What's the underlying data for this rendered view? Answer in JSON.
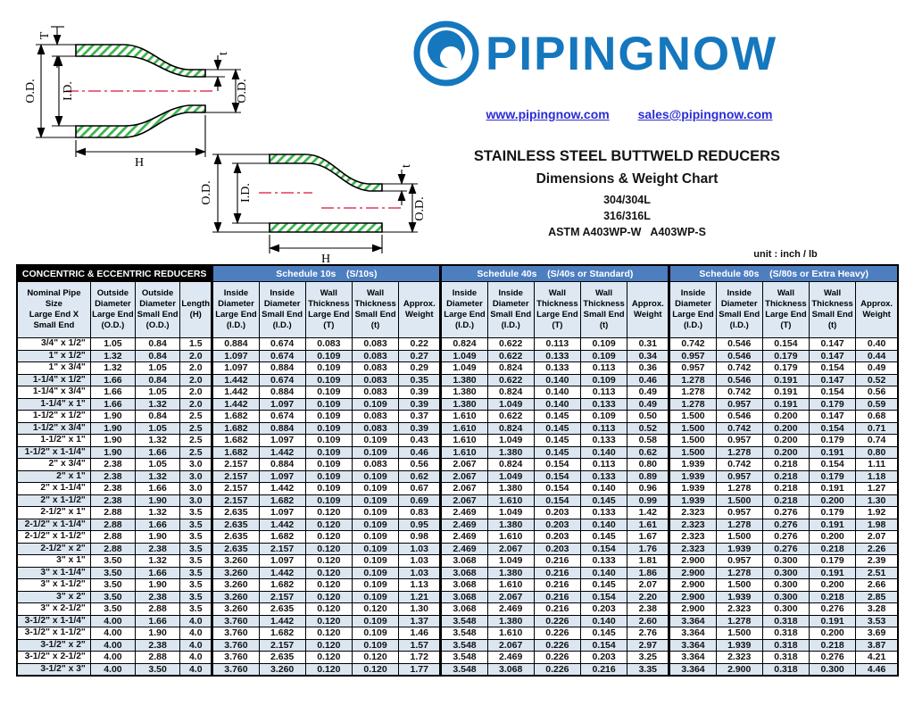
{
  "header": {
    "logo_text": "PIPINGNOW",
    "links": {
      "website": "www.pipingnow.com",
      "email": "sales@pipingnow.com"
    },
    "title_line1": "STAINLESS STEEL BUTTWELD REDUCERS",
    "title_line2": "Dimensions & Weight Chart",
    "grade1": "304/304L",
    "grade2": "316/316L",
    "astm": "ASTM A403WP-W   A403WP-S"
  },
  "unit_note": "unit : inch / lb",
  "diagrams": {
    "labels": {
      "T": "T",
      "t": "t",
      "od": "O.D.",
      "id": "I.D.",
      "h": "H"
    }
  },
  "colors": {
    "brand_blue": "#1577be",
    "link_blue": "#2b2bd5",
    "schedule_header_blue": "#4d7ebf",
    "band_row_blue": "#dce6f1",
    "column_header_blue": "#dde8f3",
    "group_header_black": "#000000",
    "centerline_red": "#e23a5a",
    "hatch_green": "#3db54e"
  },
  "table": {
    "group_headers": [
      {
        "label": "CONCENTRIC & ECCENTRIC REDUCERS"
      },
      {
        "label": "Schedule 10s    (S/10s)"
      },
      {
        "label": "Schedule 40s    (S/40s or Standard)"
      },
      {
        "label": "Schedule 80s    (S/80s or Extra Heavy)"
      }
    ],
    "column_headers": [
      "Nominal Pipe\nSize\nLarge End X\nSmall End",
      "Outside\nDiameter\nLarge End\n(O.D.)",
      "Outside\nDiameter\nSmall End\n(O.D.)",
      "Length\n(H)",
      "Inside\nDiameter\nLarge End\n(I.D.)",
      "Inside\nDiameter\nSmall End\n(I.D.)",
      "Wall\nThickness\nLarge End\n(T)",
      "Wall\nThickness\nSmall End\n(t)",
      "Approx.\nWeight",
      "Inside\nDiameter\nLarge End\n(I.D.)",
      "Inside\nDiameter\nSmall End\n(I.D.)",
      "Wall\nThickness\nLarge End\n(T)",
      "Wall\nThickness\nSmall End\n(t)",
      "Approx.\nWeight",
      "Inside\nDiameter\nLarge End\n(I.D.)",
      "Inside\nDiameter\nSmall End\n(I.D.)",
      "Wall\nThickness\nLarge End\n(T)",
      "Wall\nThickness\nSmall End\n(t)",
      "Approx.\nWeight"
    ],
    "rows": [
      [
        "3/4\" x 1/2\"",
        "1.05",
        "0.84",
        "1.5",
        "0.884",
        "0.674",
        "0.083",
        "0.083",
        "0.22",
        "0.824",
        "0.622",
        "0.113",
        "0.109",
        "0.31",
        "0.742",
        "0.546",
        "0.154",
        "0.147",
        "0.40"
      ],
      [
        "1\" x 1/2\"",
        "1.32",
        "0.84",
        "2.0",
        "1.097",
        "0.674",
        "0.109",
        "0.083",
        "0.27",
        "1.049",
        "0.622",
        "0.133",
        "0.109",
        "0.34",
        "0.957",
        "0.546",
        "0.179",
        "0.147",
        "0.44"
      ],
      [
        "1\" x 3/4\"",
        "1.32",
        "1.05",
        "2.0",
        "1.097",
        "0.884",
        "0.109",
        "0.083",
        "0.29",
        "1.049",
        "0.824",
        "0.133",
        "0.113",
        "0.36",
        "0.957",
        "0.742",
        "0.179",
        "0.154",
        "0.49"
      ],
      [
        "1-1/4\" x 1/2\"",
        "1.66",
        "0.84",
        "2.0",
        "1.442",
        "0.674",
        "0.109",
        "0.083",
        "0.35",
        "1.380",
        "0.622",
        "0.140",
        "0.109",
        "0.46",
        "1.278",
        "0.546",
        "0.191",
        "0.147",
        "0.52"
      ],
      [
        "1-1/4\" x 3/4\"",
        "1.66",
        "1.05",
        "2.0",
        "1.442",
        "0.884",
        "0.109",
        "0.083",
        "0.39",
        "1.380",
        "0.824",
        "0.140",
        "0.113",
        "0.49",
        "1.278",
        "0.742",
        "0.191",
        "0.154",
        "0.56"
      ],
      [
        "1-1/4\" x 1\"",
        "1.66",
        "1.32",
        "2.0",
        "1.442",
        "1.097",
        "0.109",
        "0.109",
        "0.39",
        "1.380",
        "1.049",
        "0.140",
        "0.133",
        "0.49",
        "1.278",
        "0.957",
        "0.191",
        "0.179",
        "0.59"
      ],
      [
        "1-1/2\" x 1/2\"",
        "1.90",
        "0.84",
        "2.5",
        "1.682",
        "0.674",
        "0.109",
        "0.083",
        "0.37",
        "1.610",
        "0.622",
        "0.145",
        "0.109",
        "0.50",
        "1.500",
        "0.546",
        "0.200",
        "0.147",
        "0.68"
      ],
      [
        "1-1/2\" x 3/4\"",
        "1.90",
        "1.05",
        "2.5",
        "1.682",
        "0.884",
        "0.109",
        "0.083",
        "0.39",
        "1.610",
        "0.824",
        "0.145",
        "0.113",
        "0.52",
        "1.500",
        "0.742",
        "0.200",
        "0.154",
        "0.71"
      ],
      [
        "1-1/2\" x 1\"",
        "1.90",
        "1.32",
        "2.5",
        "1.682",
        "1.097",
        "0.109",
        "0.109",
        "0.43",
        "1.610",
        "1.049",
        "0.145",
        "0.133",
        "0.58",
        "1.500",
        "0.957",
        "0.200",
        "0.179",
        "0.74"
      ],
      [
        "1-1/2\" x 1-1/4\"",
        "1.90",
        "1.66",
        "2.5",
        "1.682",
        "1.442",
        "0.109",
        "0.109",
        "0.46",
        "1.610",
        "1.380",
        "0.145",
        "0.140",
        "0.62",
        "1.500",
        "1.278",
        "0.200",
        "0.191",
        "0.80"
      ],
      [
        "2\" x 3/4\"",
        "2.38",
        "1.05",
        "3.0",
        "2.157",
        "0.884",
        "0.109",
        "0.083",
        "0.56",
        "2.067",
        "0.824",
        "0.154",
        "0.113",
        "0.80",
        "1.939",
        "0.742",
        "0.218",
        "0.154",
        "1.11"
      ],
      [
        "2\" x 1\"",
        "2.38",
        "1.32",
        "3.0",
        "2.157",
        "1.097",
        "0.109",
        "0.109",
        "0.62",
        "2.067",
        "1.049",
        "0.154",
        "0.133",
        "0.89",
        "1.939",
        "0.957",
        "0.218",
        "0.179",
        "1.18"
      ],
      [
        "2\" x 1-1/4\"",
        "2.38",
        "1.66",
        "3.0",
        "2.157",
        "1.442",
        "0.109",
        "0.109",
        "0.67",
        "2.067",
        "1.380",
        "0.154",
        "0.140",
        "0.96",
        "1.939",
        "1.278",
        "0.218",
        "0.191",
        "1.27"
      ],
      [
        "2\" x 1-1/2\"",
        "2.38",
        "1.90",
        "3.0",
        "2.157",
        "1.682",
        "0.109",
        "0.109",
        "0.69",
        "2.067",
        "1.610",
        "0.154",
        "0.145",
        "0.99",
        "1.939",
        "1.500",
        "0.218",
        "0.200",
        "1.30"
      ],
      [
        "2-1/2\" x 1\"",
        "2.88",
        "1.32",
        "3.5",
        "2.635",
        "1.097",
        "0.120",
        "0.109",
        "0.83",
        "2.469",
        "1.049",
        "0.203",
        "0.133",
        "1.42",
        "2.323",
        "0.957",
        "0.276",
        "0.179",
        "1.92"
      ],
      [
        "2-1/2\" x 1-1/4\"",
        "2.88",
        "1.66",
        "3.5",
        "2.635",
        "1.442",
        "0.120",
        "0.109",
        "0.95",
        "2.469",
        "1.380",
        "0.203",
        "0.140",
        "1.61",
        "2.323",
        "1.278",
        "0.276",
        "0.191",
        "1.98"
      ],
      [
        "2-1/2\" x 1-1/2\"",
        "2.88",
        "1.90",
        "3.5",
        "2.635",
        "1.682",
        "0.120",
        "0.109",
        "0.98",
        "2.469",
        "1.610",
        "0.203",
        "0.145",
        "1.67",
        "2.323",
        "1.500",
        "0.276",
        "0.200",
        "2.07"
      ],
      [
        "2-1/2\" x 2\"",
        "2.88",
        "2.38",
        "3.5",
        "2.635",
        "2.157",
        "0.120",
        "0.109",
        "1.03",
        "2.469",
        "2.067",
        "0.203",
        "0.154",
        "1.76",
        "2.323",
        "1.939",
        "0.276",
        "0.218",
        "2.26"
      ],
      [
        "3\" x 1\"",
        "3.50",
        "1.32",
        "3.5",
        "3.260",
        "1.097",
        "0.120",
        "0.109",
        "1.03",
        "3.068",
        "1.049",
        "0.216",
        "0.133",
        "1.81",
        "2.900",
        "0.957",
        "0.300",
        "0.179",
        "2.39"
      ],
      [
        "3\" x 1-1/4\"",
        "3.50",
        "1.66",
        "3.5",
        "3.260",
        "1.442",
        "0.120",
        "0.109",
        "1.03",
        "3.068",
        "1.380",
        "0.216",
        "0.140",
        "1.86",
        "2.900",
        "1.278",
        "0.300",
        "0.191",
        "2.51"
      ],
      [
        "3\" x 1-1/2\"",
        "3.50",
        "1.90",
        "3.5",
        "3.260",
        "1.682",
        "0.120",
        "0.109",
        "1.13",
        "3.068",
        "1.610",
        "0.216",
        "0.145",
        "2.07",
        "2.900",
        "1.500",
        "0.300",
        "0.200",
        "2.66"
      ],
      [
        "3\" x 2\"",
        "3.50",
        "2.38",
        "3.5",
        "3.260",
        "2.157",
        "0.120",
        "0.109",
        "1.21",
        "3.068",
        "2.067",
        "0.216",
        "0.154",
        "2.20",
        "2.900",
        "1.939",
        "0.300",
        "0.218",
        "2.85"
      ],
      [
        "3\" x 2-1/2\"",
        "3.50",
        "2.88",
        "3.5",
        "3.260",
        "2.635",
        "0.120",
        "0.120",
        "1.30",
        "3.068",
        "2.469",
        "0.216",
        "0.203",
        "2.38",
        "2.900",
        "2.323",
        "0.300",
        "0.276",
        "3.28"
      ],
      [
        "3-1/2\" x 1-1/4\"",
        "4.00",
        "1.66",
        "4.0",
        "3.760",
        "1.442",
        "0.120",
        "0.109",
        "1.37",
        "3.548",
        "1.380",
        "0.226",
        "0.140",
        "2.60",
        "3.364",
        "1.278",
        "0.318",
        "0.191",
        "3.53"
      ],
      [
        "3-1/2\" x 1-1/2\"",
        "4.00",
        "1.90",
        "4.0",
        "3.760",
        "1.682",
        "0.120",
        "0.109",
        "1.46",
        "3.548",
        "1.610",
        "0.226",
        "0.145",
        "2.76",
        "3.364",
        "1.500",
        "0.318",
        "0.200",
        "3.69"
      ],
      [
        "3-1/2\" x 2\"",
        "4.00",
        "2.38",
        "4.0",
        "3.760",
        "2.157",
        "0.120",
        "0.109",
        "1.57",
        "3.548",
        "2.067",
        "0.226",
        "0.154",
        "2.97",
        "3.364",
        "1.939",
        "0.318",
        "0.218",
        "3.87"
      ],
      [
        "3-1/2\" x 2-1/2\"",
        "4.00",
        "2.88",
        "4.0",
        "3.760",
        "2.635",
        "0.120",
        "0.120",
        "1.72",
        "3.548",
        "2.469",
        "0.226",
        "0.203",
        "3.25",
        "3.364",
        "2.323",
        "0.318",
        "0.276",
        "4.21"
      ],
      [
        "3-1/2\" x 3\"",
        "4.00",
        "3.50",
        "4.0",
        "3.760",
        "3.260",
        "0.120",
        "0.120",
        "1.77",
        "3.548",
        "3.068",
        "0.226",
        "0.216",
        "3.35",
        "3.364",
        "2.900",
        "0.318",
        "0.300",
        "4.46"
      ]
    ]
  }
}
